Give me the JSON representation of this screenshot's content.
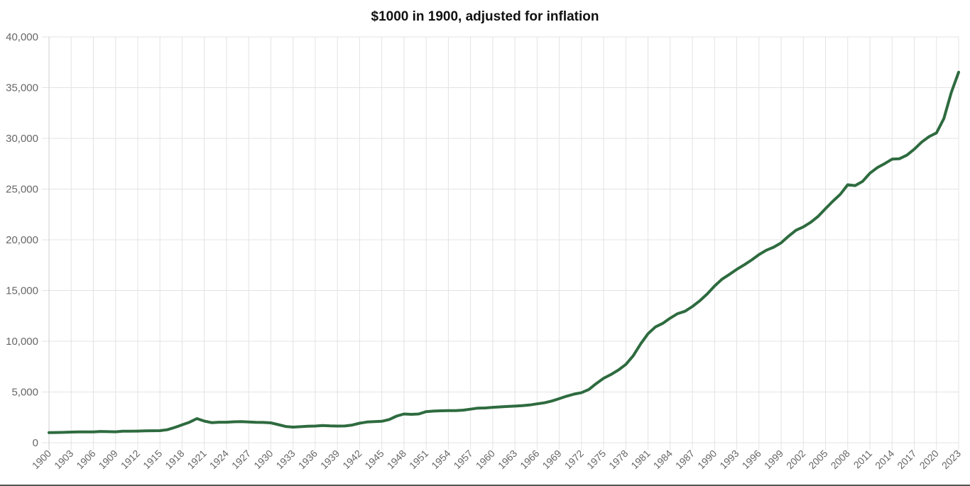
{
  "chart_data": {
    "type": "line",
    "title": "$1000 in 1900, adjusted for inflation",
    "xlabel": "",
    "ylabel": "",
    "ylim": [
      0,
      40000
    ],
    "xlim": [
      1900,
      2023
    ],
    "grid": true,
    "legend": null,
    "line_color": "#2e6b3f",
    "y_ticks": [
      "0",
      "5,000",
      "10,000",
      "15,000",
      "20,000",
      "25,000",
      "30,000",
      "35,000",
      "40,000"
    ],
    "x_ticks": [
      "1900",
      "1903",
      "1906",
      "1909",
      "1912",
      "1915",
      "1918",
      "1921",
      "1924",
      "1927",
      "1930",
      "1933",
      "1936",
      "1939",
      "1942",
      "1945",
      "1948",
      "1951",
      "1954",
      "1957",
      "1960",
      "1963",
      "1966",
      "1969",
      "1972",
      "1975",
      "1978",
      "1981",
      "1984",
      "1987",
      "1990",
      "1993",
      "1996",
      "1999",
      "2002",
      "2005",
      "2008",
      "2011",
      "2014",
      "2017",
      "2020",
      "2023"
    ],
    "series": [
      {
        "name": "$1000 in 1900, adjusted for inflation",
        "x": [
          1900,
          1901,
          1902,
          1903,
          1904,
          1905,
          1906,
          1907,
          1908,
          1909,
          1910,
          1911,
          1912,
          1913,
          1914,
          1915,
          1916,
          1917,
          1918,
          1919,
          1920,
          1921,
          1922,
          1923,
          1924,
          1925,
          1926,
          1927,
          1928,
          1929,
          1930,
          1931,
          1932,
          1933,
          1934,
          1935,
          1936,
          1937,
          1938,
          1939,
          1940,
          1941,
          1942,
          1943,
          1944,
          1945,
          1946,
          1947,
          1948,
          1949,
          1950,
          1951,
          1952,
          1953,
          1954,
          1955,
          1956,
          1957,
          1958,
          1959,
          1960,
          1961,
          1962,
          1963,
          1964,
          1965,
          1966,
          1967,
          1968,
          1969,
          1970,
          1971,
          1972,
          1973,
          1974,
          1975,
          1976,
          1977,
          1978,
          1979,
          1980,
          1981,
          1982,
          1983,
          1984,
          1985,
          1986,
          1987,
          1988,
          1989,
          1990,
          1991,
          1992,
          1993,
          1994,
          1995,
          1996,
          1997,
          1998,
          1999,
          2000,
          2001,
          2002,
          2003,
          2004,
          2005,
          2006,
          2007,
          2008,
          2009,
          2010,
          2011,
          2012,
          2013,
          2014,
          2015,
          2016,
          2017,
          2018,
          2019,
          2020,
          2021,
          2022,
          2023
        ],
        "values": [
          1000,
          1010,
          1020,
          1050,
          1060,
          1060,
          1060,
          1110,
          1090,
          1080,
          1130,
          1130,
          1150,
          1170,
          1180,
          1190,
          1280,
          1500,
          1760,
          2020,
          2380,
          2130,
          1980,
          2020,
          2020,
          2060,
          2080,
          2040,
          2010,
          2000,
          1960,
          1780,
          1600,
          1540,
          1580,
          1620,
          1640,
          1690,
          1660,
          1640,
          1650,
          1740,
          1920,
          2040,
          2080,
          2110,
          2290,
          2620,
          2830,
          2800,
          2830,
          3060,
          3120,
          3150,
          3170,
          3160,
          3210,
          3310,
          3410,
          3430,
          3490,
          3530,
          3570,
          3610,
          3660,
          3720,
          3830,
          3940,
          4110,
          4340,
          4590,
          4790,
          4940,
          5250,
          5830,
          6360,
          6730,
          7170,
          7710,
          8580,
          9740,
          10750,
          11410,
          11770,
          12280,
          12720,
          12960,
          13430,
          13990,
          14660,
          15450,
          16110,
          16590,
          17090,
          17530,
          18010,
          18540,
          18970,
          19270,
          19700,
          20360,
          20940,
          21270,
          21730,
          22310,
          23070,
          23810,
          24490,
          25430,
          25340,
          25750,
          26560,
          27110,
          27510,
          27950,
          27990,
          28340,
          28930,
          29630,
          30170,
          30540,
          31950,
          34510,
          36520
        ]
      }
    ]
  }
}
